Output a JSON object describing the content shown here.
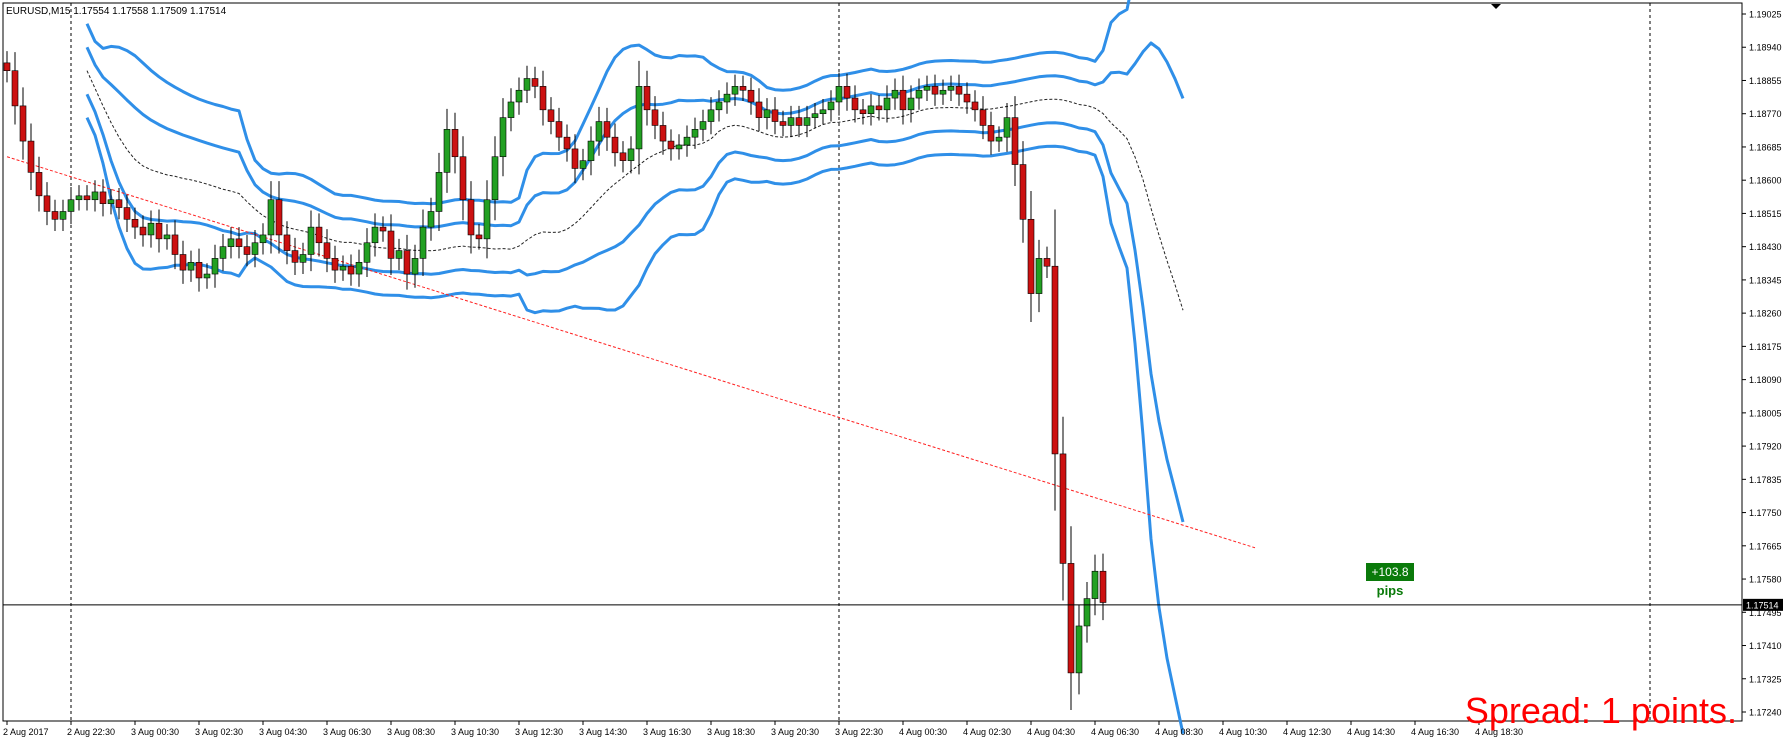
{
  "symbol_info": "EURUSD,M15  1.17554 1.17558 1.17509 1.17514",
  "spread_text": "Spread: 1 points.",
  "trade_pips": {
    "value": "+103.8",
    "unit": "pips"
  },
  "colors": {
    "bull": "#22a022",
    "bear": "#cc1111",
    "band": "#2f8fe8",
    "ma": "#222222",
    "trendline": "#ff2020",
    "bid_line": "#000000",
    "price_box": "#000000"
  },
  "chart_data": {
    "type": "candlestick",
    "symbol": "EURUSD",
    "timeframe": "M15",
    "grid": false,
    "ylim": [
      1.1724,
      1.1906
    ],
    "y_ticks": [
      "1.19025",
      "1.18940",
      "1.18855",
      "1.18770",
      "1.18685",
      "1.18600",
      "1.18515",
      "1.18430",
      "1.18345",
      "1.18260",
      "1.18175",
      "1.18090",
      "1.18005",
      "1.17920",
      "1.17835",
      "1.17750",
      "1.17665",
      "1.17580",
      "1.17495",
      "1.17410",
      "1.17325",
      "1.17240"
    ],
    "x_ticks": [
      "2 Aug 2017",
      "2 Aug 22:30",
      "3 Aug 00:30",
      "3 Aug 02:30",
      "3 Aug 04:30",
      "3 Aug 06:30",
      "3 Aug 08:30",
      "3 Aug 10:30",
      "3 Aug 12:30",
      "3 Aug 14:30",
      "3 Aug 16:30",
      "3 Aug 18:30",
      "3 Aug 20:30",
      "3 Aug 22:30",
      "4 Aug 00:30",
      "4 Aug 02:30",
      "4 Aug 04:30",
      "4 Aug 06:30",
      "4 Aug 08:30",
      "4 Aug 10:30",
      "4 Aug 12:30",
      "4 Aug 14:30",
      "4 Aug 16:30",
      "4 Aug 18:30"
    ],
    "period_separators": [
      "2 Aug 22:30",
      "3 Aug 22:30",
      "4 Aug 22:30"
    ],
    "current_price": "1.17514",
    "close": [
      1.1888,
      1.1879,
      1.187,
      1.1862,
      1.1856,
      1.1852,
      1.185,
      1.1852,
      1.1855,
      1.1856,
      1.1855,
      1.1857,
      1.1854,
      1.1855,
      1.1853,
      1.185,
      1.1848,
      1.1846,
      1.1849,
      1.1845,
      1.1846,
      1.1841,
      1.1837,
      1.1839,
      1.1835,
      1.1836,
      1.184,
      1.1843,
      1.1845,
      1.1843,
      1.1841,
      1.1844,
      1.1846,
      1.1855,
      1.1846,
      1.1842,
      1.1839,
      1.1841,
      1.1848,
      1.1844,
      1.184,
      1.1837,
      1.1838,
      1.1836,
      1.1839,
      1.1844,
      1.1848,
      1.1847,
      1.184,
      1.1842,
      1.1836,
      1.184,
      1.1848,
      1.1852,
      1.1862,
      1.1873,
      1.1866,
      1.1855,
      1.1846,
      1.1845,
      1.1855,
      1.1866,
      1.1876,
      1.188,
      1.1883,
      1.1886,
      1.1884,
      1.1878,
      1.1875,
      1.1871,
      1.1868,
      1.1863,
      1.1865,
      1.187,
      1.1875,
      1.1871,
      1.1867,
      1.1865,
      1.1868,
      1.1884,
      1.1878,
      1.1874,
      1.187,
      1.1868,
      1.1869,
      1.1871,
      1.1873,
      1.1875,
      1.1878,
      1.188,
      1.1882,
      1.1884,
      1.1883,
      1.188,
      1.1876,
      1.1878,
      1.1875,
      1.1874,
      1.1876,
      1.1874,
      1.1876,
      1.1877,
      1.1878,
      1.188,
      1.1884,
      1.1881,
      1.1878,
      1.1877,
      1.1879,
      1.1878,
      1.1881,
      1.1883,
      1.1878,
      1.1881,
      1.1883,
      1.1884,
      1.1882,
      1.1883,
      1.1884,
      1.1882,
      1.188,
      1.1878,
      1.1874,
      1.187,
      1.1871,
      1.1876,
      1.1864,
      1.185,
      1.1831,
      1.184,
      1.1838,
      1.179,
      1.1762,
      1.1734,
      1.1746,
      1.1753,
      1.176,
      1.1752
    ]
  }
}
